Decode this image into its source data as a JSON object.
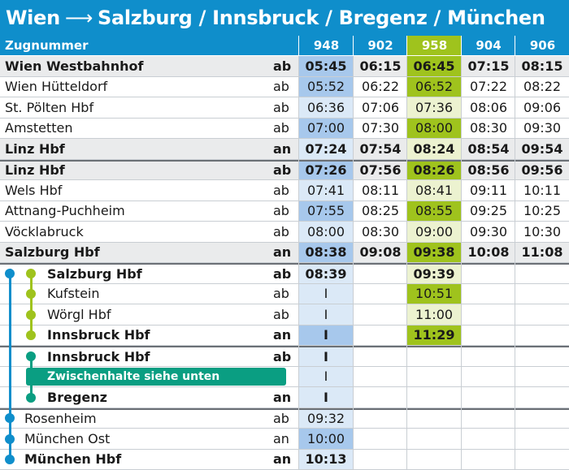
{
  "title": {
    "origin": "Wien",
    "arrow": "⟶",
    "destinations": "Salzburg / Innsbruck / Bregenz / München"
  },
  "header": {
    "label": "Zugnummer",
    "trains": [
      "948",
      "902",
      "958",
      "904",
      "906"
    ]
  },
  "rows": [
    {
      "station": "Wien Westbahnhof",
      "type": "ab",
      "times": [
        "05:45",
        "06:15",
        "06:45",
        "07:15",
        "08:15"
      ]
    },
    {
      "station": "Wien Hütteldorf",
      "type": "ab",
      "times": [
        "05:52",
        "06:22",
        "06:52",
        "07:22",
        "08:22"
      ]
    },
    {
      "station": "St. Pölten Hbf",
      "type": "ab",
      "times": [
        "06:36",
        "07:06",
        "07:36",
        "08:06",
        "09:06"
      ]
    },
    {
      "station": "Amstetten",
      "type": "ab",
      "times": [
        "07:00",
        "07:30",
        "08:00",
        "08:30",
        "09:30"
      ]
    },
    {
      "station": "Linz Hbf",
      "type": "an",
      "times": [
        "07:24",
        "07:54",
        "08:24",
        "08:54",
        "09:54"
      ]
    },
    {
      "station": "Linz Hbf",
      "type": "ab",
      "times": [
        "07:26",
        "07:56",
        "08:26",
        "08:56",
        "09:56"
      ]
    },
    {
      "station": "Wels Hbf",
      "type": "ab",
      "times": [
        "07:41",
        "08:11",
        "08:41",
        "09:11",
        "10:11"
      ]
    },
    {
      "station": "Attnang-Puchheim",
      "type": "ab",
      "times": [
        "07:55",
        "08:25",
        "08:55",
        "09:25",
        "10:25"
      ]
    },
    {
      "station": "Vöcklabruck",
      "type": "ab",
      "times": [
        "08:00",
        "08:30",
        "09:00",
        "09:30",
        "10:30"
      ]
    },
    {
      "station": "Salzburg Hbf",
      "type": "an",
      "times": [
        "08:38",
        "09:08",
        "09:38",
        "10:08",
        "11:08"
      ]
    },
    {
      "station": "Salzburg Hbf",
      "type": "ab",
      "times": [
        "08:39",
        "",
        "09:39",
        "",
        ""
      ]
    },
    {
      "station": "Kufstein",
      "type": "ab",
      "times": [
        "I",
        "",
        "10:51",
        "",
        ""
      ]
    },
    {
      "station": "Wörgl Hbf",
      "type": "ab",
      "times": [
        "I",
        "",
        "11:00",
        "",
        ""
      ]
    },
    {
      "station": "Innsbruck Hbf",
      "type": "an",
      "times": [
        "I",
        "",
        "11:29",
        "",
        ""
      ]
    },
    {
      "station": "Innsbruck Hbf",
      "type": "ab",
      "times": [
        "I",
        "",
        "",
        "",
        ""
      ]
    },
    {
      "station": "",
      "type": "",
      "times": [
        "I",
        "",
        "",
        "",
        ""
      ]
    },
    {
      "station": "Bregenz",
      "type": "an",
      "times": [
        "I",
        "",
        "",
        "",
        ""
      ]
    },
    {
      "station": "Rosenheim",
      "type": "ab",
      "times": [
        "09:32",
        "",
        "",
        "",
        ""
      ]
    },
    {
      "station": "München Ost",
      "type": "an",
      "times": [
        "10:00",
        "",
        "",
        "",
        ""
      ]
    },
    {
      "station": "München Hbf",
      "type": "an",
      "times": [
        "10:13",
        "",
        "",
        "",
        ""
      ]
    }
  ],
  "banner": "Zwischenhalte siehe unten",
  "colors": {
    "blue": "#0f8ecb",
    "green": "#9fc31d",
    "teal": "#0a9e82",
    "light_blue": "#dbe9f7",
    "mid_blue": "#a7c8ec",
    "light_green": "#ecf2d0",
    "gray_row": "#eaebec"
  }
}
